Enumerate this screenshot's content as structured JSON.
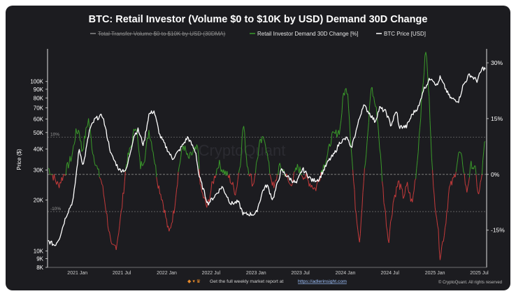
{
  "chart_data": {
    "type": "line",
    "title": "BTC: Retail Investor (Volume $0 to $10K by USD) Demand 30D Change",
    "legend_placement": "top-center",
    "legend": [
      {
        "label": "Total Transfer Volume $0 to $10K by USD (30DMA)",
        "color": "#8a8a8a",
        "hidden": true
      },
      {
        "label": "Retail Investor Demand 30D Change [%]",
        "color": "#3a9a2a"
      },
      {
        "label": "BTC Price [USD]",
        "color": "#ffffff"
      }
    ],
    "ylabel": "Price ($)",
    "y_scale": "log",
    "ylim": [
      8000,
      150000
    ],
    "y_ticks": [
      {
        "label": "100K",
        "value": 100000
      },
      {
        "label": "90K",
        "value": 90000
      },
      {
        "label": "80K",
        "value": 80000
      },
      {
        "label": "70K",
        "value": 70000
      },
      {
        "label": "60K",
        "value": 60000
      },
      {
        "label": "50K",
        "value": 50000
      },
      {
        "label": "40K",
        "value": 40000
      },
      {
        "label": "30K",
        "value": 30000
      },
      {
        "label": "20K",
        "value": 20000
      },
      {
        "label": "10K",
        "value": 10000
      },
      {
        "label": "9K",
        "value": 9000
      },
      {
        "label": "8K",
        "value": 8000
      }
    ],
    "y2lim": [
      -25,
      33
    ],
    "y2_ticks": [
      {
        "label": "30%",
        "value": 30
      },
      {
        "label": "15%",
        "value": 15
      },
      {
        "label": "0%",
        "value": 0
      },
      {
        "label": "-15%",
        "value": -15
      }
    ],
    "thresholds": [
      {
        "label": "10%",
        "value": 10
      },
      {
        "label": "-10%",
        "value": -10
      }
    ],
    "x_ticks": [
      "2021 Jan",
      "2021 Jul",
      "2022 Jan",
      "2022 Jul",
      "2023 Jan",
      "2023 Jul",
      "2024 Jan",
      "2024 Jul",
      "2025 Jan",
      "2025 Jul"
    ],
    "xlim": [
      "2020-09-01",
      "2025-07-31"
    ],
    "grid": false,
    "series": [
      {
        "name": "BTC Price [USD]",
        "color": "#ffffff",
        "axis": "left",
        "points": [
          [
            "2020-09-01",
            11500
          ],
          [
            "2020-10-01",
            10800
          ],
          [
            "2020-10-20",
            12000
          ],
          [
            "2020-11-15",
            16000
          ],
          [
            "2020-12-15",
            20000
          ],
          [
            "2021-01-08",
            40000
          ],
          [
            "2021-01-25",
            32000
          ],
          [
            "2021-02-20",
            52000
          ],
          [
            "2021-03-14",
            60000
          ],
          [
            "2021-04-14",
            63000
          ],
          [
            "2021-05-19",
            37000
          ],
          [
            "2021-06-22",
            30000
          ],
          [
            "2021-07-20",
            30000
          ],
          [
            "2021-08-20",
            48000
          ],
          [
            "2021-09-06",
            52000
          ],
          [
            "2021-09-28",
            42000
          ],
          [
            "2021-10-20",
            64000
          ],
          [
            "2021-11-10",
            67000
          ],
          [
            "2021-12-04",
            48000
          ],
          [
            "2022-01-24",
            35000
          ],
          [
            "2022-02-20",
            39000
          ],
          [
            "2022-03-28",
            47000
          ],
          [
            "2022-04-30",
            38000
          ],
          [
            "2022-05-12",
            28000
          ],
          [
            "2022-06-18",
            19000
          ],
          [
            "2022-07-15",
            21000
          ],
          [
            "2022-08-15",
            24000
          ],
          [
            "2022-09-20",
            19000
          ],
          [
            "2022-10-20",
            19500
          ],
          [
            "2022-11-10",
            16500
          ],
          [
            "2022-12-31",
            16500
          ],
          [
            "2023-01-30",
            23000
          ],
          [
            "2023-02-15",
            24500
          ],
          [
            "2023-03-10",
            20000
          ],
          [
            "2023-04-14",
            30000
          ],
          [
            "2023-05-15",
            27000
          ],
          [
            "2023-06-15",
            25000
          ],
          [
            "2023-07-10",
            30500
          ],
          [
            "2023-08-18",
            26000
          ],
          [
            "2023-09-15",
            26500
          ],
          [
            "2023-10-24",
            34000
          ],
          [
            "2023-11-15",
            37000
          ],
          [
            "2023-12-10",
            44000
          ],
          [
            "2024-01-10",
            46500
          ],
          [
            "2024-01-23",
            39500
          ],
          [
            "2024-02-15",
            52000
          ],
          [
            "2024-03-14",
            73000
          ],
          [
            "2024-04-15",
            63000
          ],
          [
            "2024-05-01",
            58000
          ],
          [
            "2024-05-20",
            70000
          ],
          [
            "2024-06-15",
            66000
          ],
          [
            "2024-07-05",
            55000
          ],
          [
            "2024-07-29",
            68000
          ],
          [
            "2024-08-05",
            54000
          ],
          [
            "2024-09-06",
            54000
          ],
          [
            "2024-09-30",
            64000
          ],
          [
            "2024-10-29",
            72000
          ],
          [
            "2024-11-12",
            88000
          ],
          [
            "2024-12-05",
            100000
          ],
          [
            "2024-12-17",
            106000
          ],
          [
            "2025-01-10",
            94000
          ],
          [
            "2025-01-21",
            106000
          ],
          [
            "2025-02-28",
            82000
          ],
          [
            "2025-03-10",
            79000
          ],
          [
            "2025-04-08",
            77000
          ],
          [
            "2025-04-25",
            94000
          ],
          [
            "2025-05-22",
            110000
          ],
          [
            "2025-06-22",
            101000
          ],
          [
            "2025-07-14",
            120000
          ],
          [
            "2025-07-31",
            118000
          ]
        ]
      },
      {
        "name": "Retail Investor Demand 30D Change [%]",
        "color_positive": "#3a9a2a",
        "color_negative": "#c43a3a",
        "axis": "right",
        "points": [
          [
            "2020-09-01",
            2
          ],
          [
            "2020-09-20",
            0
          ],
          [
            "2020-10-15",
            -3
          ],
          [
            "2020-11-15",
            1
          ],
          [
            "2020-12-10",
            5
          ],
          [
            "2020-12-25",
            11
          ],
          [
            "2021-01-08",
            12
          ],
          [
            "2021-01-20",
            6
          ],
          [
            "2021-02-15",
            15
          ],
          [
            "2021-03-05",
            6
          ],
          [
            "2021-03-25",
            1
          ],
          [
            "2021-04-10",
            -2
          ],
          [
            "2021-04-25",
            -8
          ],
          [
            "2021-05-20",
            -20
          ],
          [
            "2021-06-10",
            -19
          ],
          [
            "2021-06-30",
            -10
          ],
          [
            "2021-07-20",
            3
          ],
          [
            "2021-08-10",
            8
          ],
          [
            "2021-08-28",
            14
          ],
          [
            "2021-09-15",
            2
          ],
          [
            "2021-10-05",
            5
          ],
          [
            "2021-10-20",
            12
          ],
          [
            "2021-11-05",
            7
          ],
          [
            "2021-11-25",
            -2
          ],
          [
            "2021-12-15",
            -7
          ],
          [
            "2022-01-10",
            -16
          ],
          [
            "2022-01-30",
            -10
          ],
          [
            "2022-02-20",
            2
          ],
          [
            "2022-03-10",
            8
          ],
          [
            "2022-03-30",
            4
          ],
          [
            "2022-04-20",
            6
          ],
          [
            "2022-05-08",
            7
          ],
          [
            "2022-05-20",
            -4
          ],
          [
            "2022-06-15",
            -9
          ],
          [
            "2022-07-05",
            -3
          ],
          [
            "2022-08-01",
            3
          ],
          [
            "2022-08-20",
            1
          ],
          [
            "2022-09-15",
            -1
          ],
          [
            "2022-10-10",
            -5
          ],
          [
            "2022-10-30",
            4
          ],
          [
            "2022-11-10",
            14
          ],
          [
            "2022-11-25",
            3
          ],
          [
            "2022-12-20",
            -3
          ],
          [
            "2023-01-15",
            8
          ],
          [
            "2023-02-05",
            10
          ],
          [
            "2023-02-25",
            1
          ],
          [
            "2023-03-15",
            -4
          ],
          [
            "2023-04-05",
            2
          ],
          [
            "2023-04-25",
            1
          ],
          [
            "2023-05-20",
            -3
          ],
          [
            "2023-06-20",
            2
          ],
          [
            "2023-07-10",
            0
          ],
          [
            "2023-08-05",
            -2
          ],
          [
            "2023-09-01",
            -4
          ],
          [
            "2023-09-25",
            1
          ],
          [
            "2023-10-20",
            5
          ],
          [
            "2023-11-05",
            10
          ],
          [
            "2023-11-25",
            11
          ],
          [
            "2023-12-10",
            12
          ],
          [
            "2023-12-25",
            22
          ],
          [
            "2024-01-10",
            23
          ],
          [
            "2024-01-25",
            7
          ],
          [
            "2024-02-10",
            -8
          ],
          [
            "2024-02-28",
            -18
          ],
          [
            "2024-03-15",
            -2
          ],
          [
            "2024-03-30",
            8
          ],
          [
            "2024-04-15",
            24
          ],
          [
            "2024-05-10",
            16
          ],
          [
            "2024-06-05",
            -6
          ],
          [
            "2024-06-25",
            -18
          ],
          [
            "2024-07-15",
            -7
          ],
          [
            "2024-08-05",
            -2
          ],
          [
            "2024-08-25",
            -6
          ],
          [
            "2024-09-10",
            -3
          ],
          [
            "2024-09-30",
            -8
          ],
          [
            "2024-10-20",
            3
          ],
          [
            "2024-11-10",
            22
          ],
          [
            "2024-11-25",
            34
          ],
          [
            "2024-12-10",
            18
          ],
          [
            "2024-12-25",
            -4
          ],
          [
            "2025-01-10",
            -12
          ],
          [
            "2025-01-22",
            -22
          ],
          [
            "2025-02-10",
            -15
          ],
          [
            "2025-02-28",
            -4
          ],
          [
            "2025-03-20",
            -1
          ],
          [
            "2025-04-10",
            6
          ],
          [
            "2025-04-25",
            3
          ],
          [
            "2025-05-10",
            -5
          ],
          [
            "2025-05-30",
            3
          ],
          [
            "2025-06-15",
            1
          ],
          [
            "2025-06-28",
            -6
          ],
          [
            "2025-07-10",
            -1
          ],
          [
            "2025-07-24",
            9
          ],
          [
            "2025-07-31",
            6
          ]
        ]
      }
    ]
  },
  "footer": {
    "icons": "◆ ▾ ♛",
    "text": "Get the full weekly market report at",
    "link": "https://adlerinsight.com",
    "credit": "© CryptoQuant. All rights reserved"
  },
  "watermark": "CryptoQuant"
}
